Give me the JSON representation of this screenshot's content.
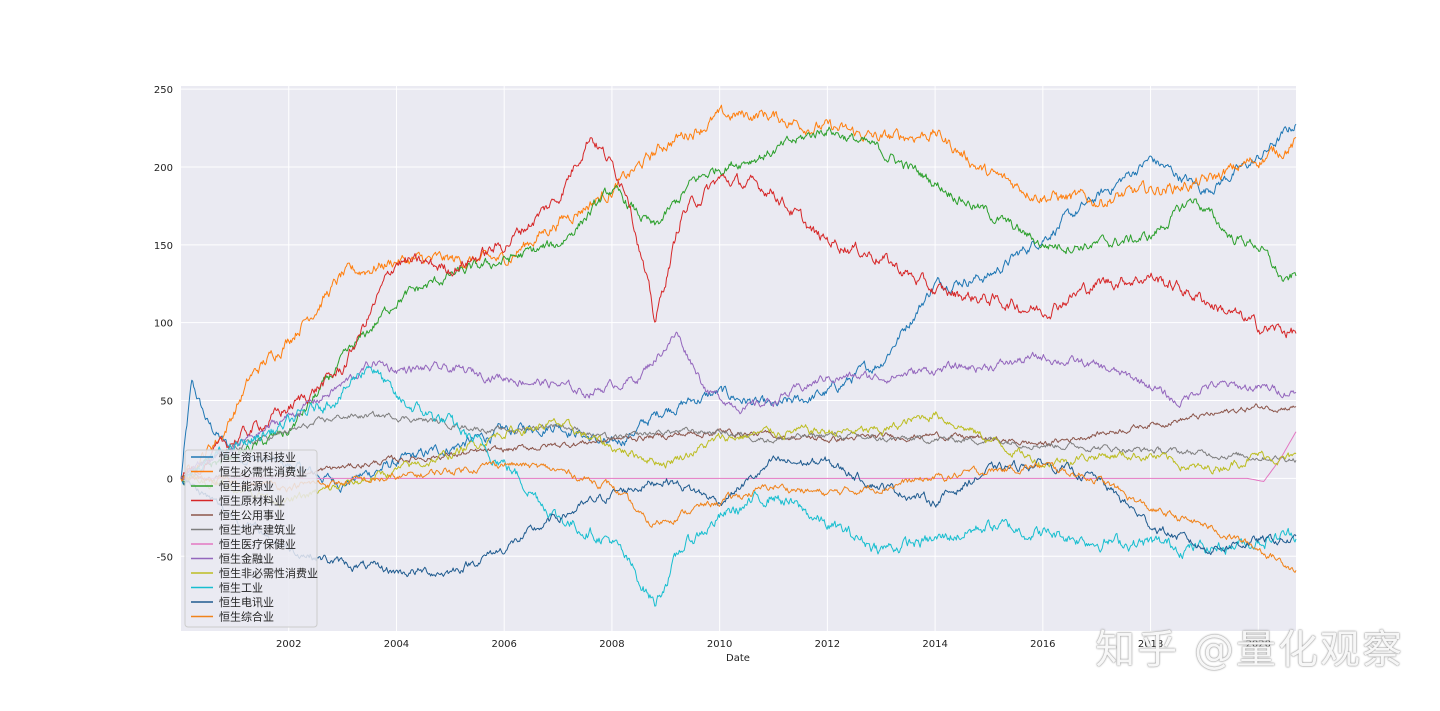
{
  "chart_data": {
    "type": "line",
    "title": "",
    "xlabel": "Date",
    "ylabel": "",
    "xlim": [
      2000.0,
      2020.7
    ],
    "ylim": [
      -98,
      252
    ],
    "x_ticks": [
      2002,
      2004,
      2006,
      2008,
      2010,
      2012,
      2014,
      2016,
      2018,
      2020
    ],
    "y_ticks": [
      -50,
      0,
      50,
      100,
      150,
      200,
      250
    ],
    "grid": true,
    "legend_position": "lower-left",
    "series": [
      {
        "name": "恒生资讯科技业",
        "color": "#1f77b4",
        "volatility": 2.2,
        "points": [
          [
            2000.0,
            0
          ],
          [
            2000.2,
            60
          ],
          [
            2000.5,
            35
          ],
          [
            2001,
            15
          ],
          [
            2002,
            8
          ],
          [
            2003,
            -3
          ],
          [
            2004,
            10
          ],
          [
            2005,
            20
          ],
          [
            2006,
            30
          ],
          [
            2007,
            35
          ],
          [
            2008,
            20
          ],
          [
            2009,
            45
          ],
          [
            2010,
            55
          ],
          [
            2011,
            45
          ],
          [
            2012,
            55
          ],
          [
            2013,
            75
          ],
          [
            2014,
            125
          ],
          [
            2015,
            130
          ],
          [
            2016,
            155
          ],
          [
            2017,
            180
          ],
          [
            2018,
            205
          ],
          [
            2019,
            185
          ],
          [
            2020,
            205
          ],
          [
            2020.7,
            228
          ]
        ]
      },
      {
        "name": "恒生必需性消费业",
        "color": "#ff7f0e",
        "volatility": 2.5,
        "points": [
          [
            2000.0,
            0
          ],
          [
            2000.8,
            30
          ],
          [
            2001.3,
            65
          ],
          [
            2002,
            90
          ],
          [
            2003,
            130
          ],
          [
            2004,
            140
          ],
          [
            2005,
            140
          ],
          [
            2006,
            140
          ],
          [
            2007,
            165
          ],
          [
            2008,
            185
          ],
          [
            2009,
            215
          ],
          [
            2010,
            232
          ],
          [
            2010.8,
            234
          ],
          [
            2011.5,
            228
          ],
          [
            2012,
            225
          ],
          [
            2013,
            218
          ],
          [
            2014,
            222
          ],
          [
            2015,
            195
          ],
          [
            2016,
            182
          ],
          [
            2017,
            178
          ],
          [
            2018,
            185
          ],
          [
            2019,
            190
          ],
          [
            2020,
            205
          ],
          [
            2020.7,
            215
          ]
        ]
      },
      {
        "name": "恒生能源业",
        "color": "#2ca02c",
        "volatility": 2.2,
        "points": [
          [
            2000.0,
            0
          ],
          [
            2001,
            15
          ],
          [
            2002,
            30
          ],
          [
            2003,
            75
          ],
          [
            2004,
            115
          ],
          [
            2005,
            130
          ],
          [
            2006,
            140
          ],
          [
            2007,
            150
          ],
          [
            2008,
            185
          ],
          [
            2008.8,
            160
          ],
          [
            2009.5,
            190
          ],
          [
            2010,
            200
          ],
          [
            2011,
            210
          ],
          [
            2012,
            225
          ],
          [
            2013,
            210
          ],
          [
            2014,
            190
          ],
          [
            2015,
            170
          ],
          [
            2016,
            150
          ],
          [
            2017,
            150
          ],
          [
            2018,
            155
          ],
          [
            2018.8,
            180
          ],
          [
            2019.5,
            155
          ],
          [
            2020,
            150
          ],
          [
            2020.5,
            125
          ],
          [
            2020.7,
            130
          ]
        ]
      },
      {
        "name": "恒生原材料业",
        "color": "#d62728",
        "volatility": 2.5,
        "points": [
          [
            2000.0,
            0
          ],
          [
            2001,
            25
          ],
          [
            2002,
            45
          ],
          [
            2003,
            70
          ],
          [
            2004,
            140
          ],
          [
            2005,
            135
          ],
          [
            2006,
            150
          ],
          [
            2007,
            180
          ],
          [
            2007.6,
            222
          ],
          [
            2008.3,
            185
          ],
          [
            2008.8,
            100
          ],
          [
            2009.3,
            170
          ],
          [
            2010,
            192
          ],
          [
            2011,
            185
          ],
          [
            2011.8,
            155
          ],
          [
            2012.5,
            148
          ],
          [
            2013,
            142
          ],
          [
            2014,
            120
          ],
          [
            2015,
            115
          ],
          [
            2016,
            108
          ],
          [
            2017,
            125
          ],
          [
            2018,
            130
          ],
          [
            2019,
            115
          ],
          [
            2020,
            97
          ],
          [
            2020.7,
            94
          ]
        ]
      },
      {
        "name": "恒生公用事业",
        "color": "#8c564b",
        "volatility": 1.2,
        "points": [
          [
            2000.0,
            0
          ],
          [
            2002,
            2
          ],
          [
            2004,
            12
          ],
          [
            2006,
            18
          ],
          [
            2008,
            25
          ],
          [
            2010,
            30
          ],
          [
            2012,
            25
          ],
          [
            2014,
            28
          ],
          [
            2016,
            22
          ],
          [
            2018,
            35
          ],
          [
            2019,
            40
          ],
          [
            2020,
            46
          ],
          [
            2020.7,
            46
          ]
        ]
      },
      {
        "name": "恒生地产建筑业",
        "color": "#7f7f7f",
        "volatility": 1.2,
        "points": [
          [
            2000.0,
            0
          ],
          [
            2001,
            20
          ],
          [
            2002,
            30
          ],
          [
            2003,
            40
          ],
          [
            2004,
            40
          ],
          [
            2005,
            35
          ],
          [
            2006,
            30
          ],
          [
            2007,
            35
          ],
          [
            2008,
            25
          ],
          [
            2009,
            30
          ],
          [
            2010,
            30
          ],
          [
            2011,
            25
          ],
          [
            2012,
            28
          ],
          [
            2013,
            25
          ],
          [
            2014,
            25
          ],
          [
            2015,
            25
          ],
          [
            2016,
            22
          ],
          [
            2017,
            20
          ],
          [
            2018,
            18
          ],
          [
            2019,
            16
          ],
          [
            2020,
            14
          ],
          [
            2020.7,
            13
          ]
        ]
      },
      {
        "name": "恒生医疗保健业",
        "color": "#e377c2",
        "volatility": 0.0,
        "points": [
          [
            2000.0,
            0
          ],
          [
            2019.8,
            0
          ],
          [
            2020.1,
            -2
          ],
          [
            2020.4,
            12
          ],
          [
            2020.7,
            30
          ]
        ]
      },
      {
        "name": "恒生金融业",
        "color": "#9467bd",
        "volatility": 1.8,
        "points": [
          [
            2000.0,
            0
          ],
          [
            2001,
            20
          ],
          [
            2002,
            40
          ],
          [
            2003,
            60
          ],
          [
            2003.6,
            75
          ],
          [
            2004,
            70
          ],
          [
            2005,
            70
          ],
          [
            2006,
            65
          ],
          [
            2007,
            60
          ],
          [
            2007.5,
            55
          ],
          [
            2008.5,
            65
          ],
          [
            2009.2,
            93
          ],
          [
            2009.8,
            55
          ],
          [
            2010.5,
            45
          ],
          [
            2011,
            50
          ],
          [
            2012,
            65
          ],
          [
            2013,
            65
          ],
          [
            2014,
            70
          ],
          [
            2015,
            72
          ],
          [
            2016,
            78
          ],
          [
            2017,
            72
          ],
          [
            2018,
            60
          ],
          [
            2018.5,
            48
          ],
          [
            2019,
            60
          ],
          [
            2020,
            58
          ],
          [
            2020.7,
            56
          ]
        ]
      },
      {
        "name": "恒生非必需性消费业",
        "color": "#bcbd22",
        "volatility": 1.8,
        "points": [
          [
            2000.0,
            0
          ],
          [
            2001,
            -5
          ],
          [
            2002,
            -15
          ],
          [
            2003,
            -5
          ],
          [
            2004,
            5
          ],
          [
            2005,
            15
          ],
          [
            2006,
            30
          ],
          [
            2007,
            35
          ],
          [
            2008,
            20
          ],
          [
            2009,
            10
          ],
          [
            2010,
            25
          ],
          [
            2011,
            30
          ],
          [
            2012,
            30
          ],
          [
            2013,
            30
          ],
          [
            2014,
            42
          ],
          [
            2015,
            25
          ],
          [
            2016,
            10
          ],
          [
            2017,
            15
          ],
          [
            2018,
            15
          ],
          [
            2019,
            5
          ],
          [
            2020,
            15
          ],
          [
            2020.7,
            12
          ]
        ]
      },
      {
        "name": "恒生工业",
        "color": "#17becf",
        "volatility": 2.5,
        "points": [
          [
            2000.0,
            0
          ],
          [
            2001,
            20
          ],
          [
            2002,
            35
          ],
          [
            2003,
            55
          ],
          [
            2003.5,
            75
          ],
          [
            2004,
            50
          ],
          [
            2005,
            35
          ],
          [
            2006,
            10
          ],
          [
            2007,
            -25
          ],
          [
            2008,
            -40
          ],
          [
            2008.8,
            -80
          ],
          [
            2009.3,
            -45
          ],
          [
            2010,
            -25
          ],
          [
            2011,
            -10
          ],
          [
            2012,
            -30
          ],
          [
            2013,
            -45
          ],
          [
            2014,
            -40
          ],
          [
            2015,
            -30
          ],
          [
            2016,
            -35
          ],
          [
            2017,
            -40
          ],
          [
            2018,
            -42
          ],
          [
            2019,
            -45
          ],
          [
            2020,
            -40
          ],
          [
            2020.7,
            -35
          ]
        ]
      },
      {
        "name": "恒生电讯业",
        "color": "#1f5b8f",
        "volatility": 1.8,
        "points": [
          [
            2000.0,
            0
          ],
          [
            2001,
            -25
          ],
          [
            2002,
            -45
          ],
          [
            2003,
            -55
          ],
          [
            2004,
            -60
          ],
          [
            2005,
            -60
          ],
          [
            2006,
            -45
          ],
          [
            2007,
            -25
          ],
          [
            2008,
            -10
          ],
          [
            2009,
            0
          ],
          [
            2010,
            -15
          ],
          [
            2011,
            10
          ],
          [
            2012,
            10
          ],
          [
            2013,
            -5
          ],
          [
            2014,
            -15
          ],
          [
            2015,
            5
          ],
          [
            2016,
            10
          ],
          [
            2017,
            0
          ],
          [
            2018,
            -30
          ],
          [
            2019,
            -45
          ],
          [
            2020,
            -40
          ],
          [
            2020.7,
            -40
          ]
        ]
      },
      {
        "name": "恒生综合业",
        "color": "#f0831a",
        "volatility": 1.5,
        "points": [
          [
            2000.0,
            0
          ],
          [
            2002,
            -5
          ],
          [
            2004,
            0
          ],
          [
            2006,
            10
          ],
          [
            2007,
            5
          ],
          [
            2008,
            -5
          ],
          [
            2008.7,
            -30
          ],
          [
            2009.5,
            -20
          ],
          [
            2010,
            -15
          ],
          [
            2011,
            -5
          ],
          [
            2012,
            -10
          ],
          [
            2013,
            -5
          ],
          [
            2014,
            0
          ],
          [
            2015,
            5
          ],
          [
            2016,
            8
          ],
          [
            2017,
            0
          ],
          [
            2018,
            -20
          ],
          [
            2019,
            -30
          ],
          [
            2020,
            -45
          ],
          [
            2020.7,
            -58
          ]
        ]
      }
    ]
  },
  "watermark": "知乎 @量化观察"
}
